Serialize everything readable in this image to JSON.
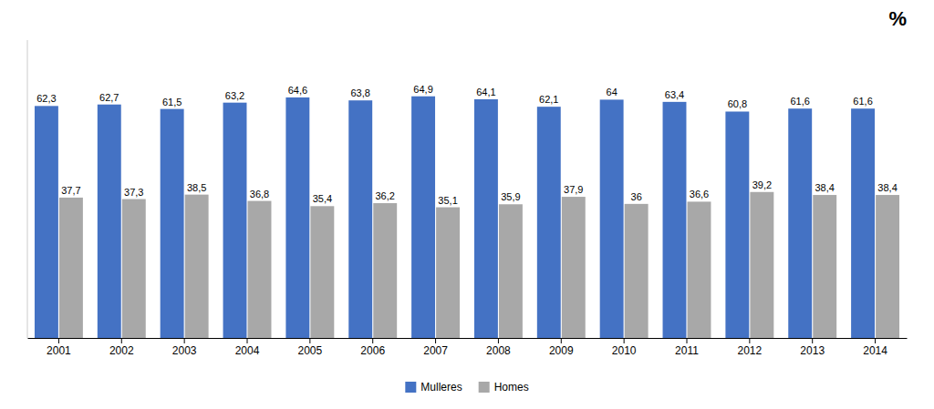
{
  "chart_data": {
    "type": "bar",
    "ylabel": "%",
    "categories": [
      "2001",
      "2002",
      "2003",
      "2004",
      "2005",
      "2006",
      "2007",
      "2008",
      "2009",
      "2010",
      "2011",
      "2012",
      "2013",
      "2014"
    ],
    "series": [
      {
        "name": "Mulleres",
        "color": "#4472C4",
        "values": [
          62.3,
          62.7,
          61.5,
          63.2,
          64.6,
          63.8,
          64.9,
          64.1,
          62.1,
          64.0,
          63.4,
          60.8,
          61.6,
          61.6
        ],
        "value_labels": [
          "62,3",
          "62,7",
          "61,5",
          "63,2",
          "64,6",
          "63,8",
          "64,9",
          "64,1",
          "62,1",
          "64",
          "63,4",
          "60,8",
          "61,6",
          "61,6"
        ]
      },
      {
        "name": "Homes",
        "color": "#A8A8A8",
        "values": [
          37.7,
          37.3,
          38.5,
          36.8,
          35.4,
          36.2,
          35.1,
          35.9,
          37.9,
          36.0,
          36.6,
          39.2,
          38.4,
          38.4
        ],
        "value_labels": [
          "37,7",
          "37,3",
          "38,5",
          "36,8",
          "35,4",
          "36,2",
          "35,1",
          "35,9",
          "37,9",
          "36",
          "36,6",
          "39,2",
          "38,4",
          "38,4"
        ]
      }
    ],
    "ylim": [
      0,
      80
    ],
    "grid": false,
    "legend": "bottom",
    "data_labels": true,
    "tick_labels": "x"
  }
}
